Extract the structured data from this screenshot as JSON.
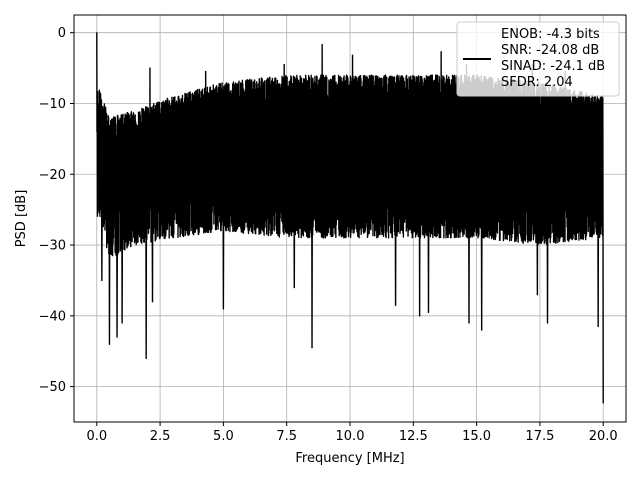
{
  "chart_data": {
    "type": "line",
    "title": "",
    "xlabel": "Frequency [MHz]",
    "ylabel": "PSD [dB]",
    "xlim": [
      -0.9,
      20.9
    ],
    "ylim": [
      -55,
      2.5
    ],
    "x_ticks": [
      0.0,
      2.5,
      5.0,
      7.5,
      10.0,
      12.5,
      15.0,
      17.5,
      20.0
    ],
    "x_tick_labels": [
      "0.0",
      "2.5",
      "5.0",
      "7.5",
      "10.0",
      "12.5",
      "15.0",
      "17.5",
      "20.0"
    ],
    "y_ticks": [
      0,
      -10,
      -20,
      -30,
      -40,
      -50
    ],
    "y_tick_labels": [
      "0",
      "−10",
      "−20",
      "−30",
      "−40",
      "−50"
    ],
    "grid": true,
    "legend_position": "top-right",
    "series": [
      {
        "name": "ENOB: -4.3 bits\nSNR: -24.08 dB\nSINAD: -24.1 dB\nSFDR: 2.04",
        "color": "#000000",
        "x_range": [
          0.0,
          20.0
        ],
        "dense_noise": true,
        "baseline_db": -19,
        "upper_envelope_db": [
          [
            0.1,
            -8
          ],
          [
            0.5,
            -12
          ],
          [
            1.5,
            -11
          ],
          [
            3.0,
            -9
          ],
          [
            5.0,
            -7
          ],
          [
            7.5,
            -6
          ],
          [
            10.0,
            -6
          ],
          [
            12.5,
            -6
          ],
          [
            15.0,
            -6
          ],
          [
            17.5,
            -7
          ],
          [
            19.9,
            -9
          ]
        ],
        "lower_envelope_db": [
          [
            0.1,
            -26
          ],
          [
            0.5,
            -32
          ],
          [
            1.5,
            -30
          ],
          [
            3.0,
            -29
          ],
          [
            5.0,
            -28
          ],
          [
            7.5,
            -29
          ],
          [
            10.0,
            -29
          ],
          [
            12.5,
            -29
          ],
          [
            15.0,
            -29
          ],
          [
            17.5,
            -30
          ],
          [
            19.9,
            -29
          ]
        ],
        "peaks": [
          {
            "x": 0.0,
            "y": 0.0
          },
          {
            "x": 0.05,
            "y": -14
          },
          {
            "x": 2.1,
            "y": -5
          },
          {
            "x": 4.3,
            "y": -5.5
          },
          {
            "x": 7.4,
            "y": -4.5
          },
          {
            "x": 8.9,
            "y": -1.7
          },
          {
            "x": 10.1,
            "y": -3.2
          },
          {
            "x": 13.6,
            "y": -2.7
          },
          {
            "x": 14.6,
            "y": -4.5
          },
          {
            "x": 17.2,
            "y": -4.5
          },
          {
            "x": 18.5,
            "y": -5.5
          }
        ],
        "notches": [
          {
            "x": 0.2,
            "y": -35
          },
          {
            "x": 0.5,
            "y": -44
          },
          {
            "x": 0.8,
            "y": -43
          },
          {
            "x": 1.0,
            "y": -41
          },
          {
            "x": 1.95,
            "y": -46
          },
          {
            "x": 2.2,
            "y": -38
          },
          {
            "x": 5.0,
            "y": -39
          },
          {
            "x": 7.8,
            "y": -36
          },
          {
            "x": 8.5,
            "y": -44.5
          },
          {
            "x": 11.8,
            "y": -38.5
          },
          {
            "x": 12.75,
            "y": -40
          },
          {
            "x": 13.1,
            "y": -39.5
          },
          {
            "x": 14.7,
            "y": -41
          },
          {
            "x": 15.2,
            "y": -42
          },
          {
            "x": 17.4,
            "y": -37
          },
          {
            "x": 17.8,
            "y": -41
          },
          {
            "x": 19.8,
            "y": -41.5
          },
          {
            "x": 20.0,
            "y": -52.3
          }
        ]
      }
    ]
  },
  "legend": {
    "lines": [
      "ENOB: -4.3 bits",
      "SNR: -24.08 dB",
      "SINAD: -24.1 dB",
      "SFDR: 2.04"
    ]
  }
}
